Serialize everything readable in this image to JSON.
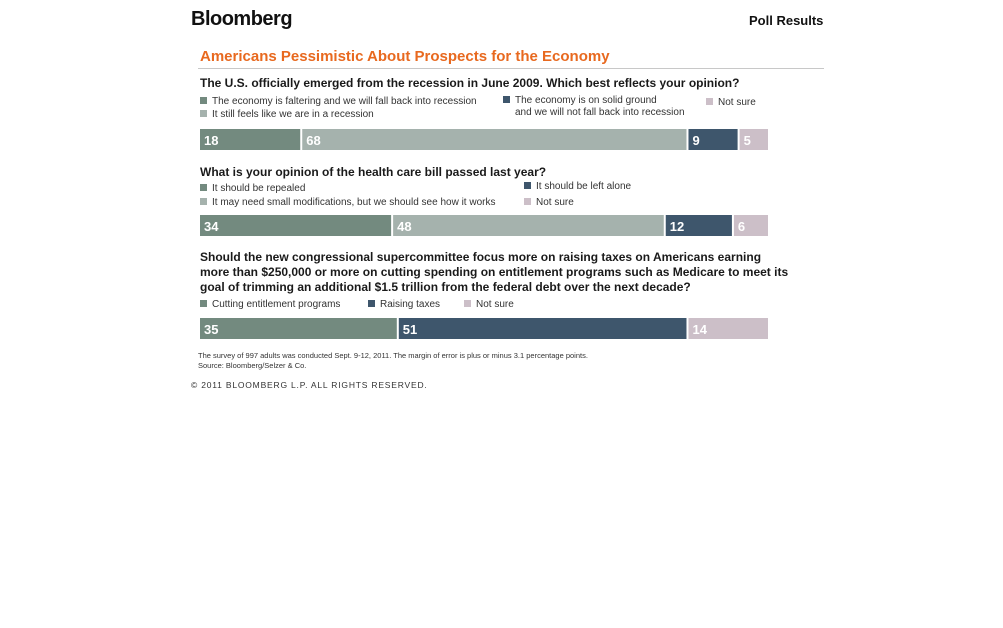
{
  "header": {
    "brand": "Bloomberg",
    "section": "Poll Results"
  },
  "colors": {
    "dark_green": "#738a7f",
    "light_gray": "#a5b2ad",
    "navy": "#3e566c",
    "mauve": "#ccbfc8",
    "title_orange": "#e8691f"
  },
  "chart_data": [
    {
      "type": "bar",
      "stacked": true,
      "orientation": "horizontal",
      "title": "Americans Pessimistic About Prospects for the Economy",
      "question": "The U.S. officially emerged from the recession in June 2009.  Which best reflects your opinion?",
      "series": [
        {
          "name": "The economy is faltering and we will fall back into recession",
          "value": 18,
          "color": "#738a7f"
        },
        {
          "name": "It still feels like we are in a recession",
          "value": 68,
          "color": "#a5b2ad"
        },
        {
          "name": "The economy is on solid ground and we will not fall back into recession",
          "value": 9,
          "color": "#3e566c"
        },
        {
          "name": "Not sure",
          "value": 5,
          "color": "#ccbfc8"
        }
      ]
    },
    {
      "type": "bar",
      "stacked": true,
      "orientation": "horizontal",
      "question": "What is your opinion of the health care bill passed last year?",
      "series": [
        {
          "name": "It should be repealed",
          "value": 34,
          "color": "#738a7f"
        },
        {
          "name": "It may need small modifications, but we should see how it works",
          "value": 48,
          "color": "#a5b2ad"
        },
        {
          "name": "It should be left alone",
          "value": 12,
          "color": "#3e566c"
        },
        {
          "name": "Not sure",
          "value": 6,
          "color": "#ccbfc8"
        }
      ]
    },
    {
      "type": "bar",
      "stacked": true,
      "orientation": "horizontal",
      "question": "Should the new congressional supercommittee focus more on raising taxes on Americans earning more than $250,000 or more on cutting spending on entitlement programs such as Medicare to meet its goal of trimming an additional $1.5 trillion from the federal debt over the next decade?",
      "series": [
        {
          "name": "Cutting entitlement programs",
          "value": 35,
          "color": "#738a7f"
        },
        {
          "name": "Raising taxes",
          "value": 51,
          "color": "#3e566c"
        },
        {
          "name": "Not sure",
          "value": 14,
          "color": "#ccbfc8"
        }
      ]
    }
  ],
  "legend_text": {
    "q1": {
      "faltering": "The economy is faltering and we will fall back into recession",
      "still_feels": "It still feels like we are in a recession",
      "solid_line1": "The economy is on solid ground",
      "solid_line2": "and we will not fall back into recession",
      "not_sure": "Not sure"
    },
    "q2": {
      "repealed": "It should be repealed",
      "modifications": "It may need small modifications, but we should see how it works",
      "left_alone": "It should be left alone",
      "not_sure": "Not sure"
    },
    "q3": {
      "cutting": "Cutting entitlement programs",
      "raising": "Raising taxes",
      "not_sure": "Not sure"
    }
  },
  "question_lines": {
    "q3_line1": "Should the new congressional supercommittee focus more on raising taxes on Americans earning",
    "q3_line2": "more than $250,000 or more on cutting spending on entitlement programs such as Medicare to meet its",
    "q3_line3": "goal of trimming an additional $1.5 trillion from the federal debt over the next decade?"
  },
  "footer": {
    "survey_note": "The survey of 997 adults was conducted Sept. 9-12, 2011. The margin of error is plus or minus 3.1 percentage points.",
    "source": "Source: Bloomberg/Selzer & Co.",
    "copyright": "© 2011 BLOOMBERG L.P. ALL RIGHTS RESERVED."
  }
}
